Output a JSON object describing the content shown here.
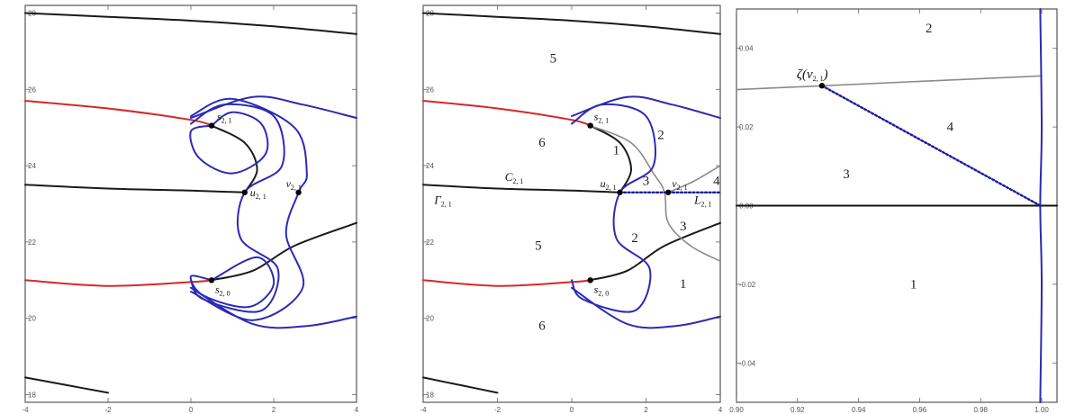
{
  "chart_data": [
    {
      "type": "line",
      "title": "",
      "xlim": [
        -4,
        4
      ],
      "ylim": [
        17.8,
        28.2
      ],
      "xticks": [
        "-4",
        "-2",
        "0",
        "2",
        "4"
      ],
      "yticks": [
        "18",
        "20",
        "22",
        "24",
        "26",
        "28"
      ],
      "grid": false,
      "colors": {
        "black": "#1a1a1a",
        "red": "#d8262a",
        "blue": "#2b2bb5"
      },
      "curves": [
        {
          "color": "black",
          "points": [
            [
              -4,
              28.0
            ],
            [
              -2,
              27.9
            ],
            [
              0,
              27.8
            ],
            [
              2,
              27.65
            ],
            [
              4,
              27.45
            ]
          ]
        },
        {
          "color": "black",
          "points": [
            [
              -4,
              18.45
            ],
            [
              -3,
              18.25
            ],
            [
              -2,
              18.05
            ]
          ]
        },
        {
          "color": "black",
          "points": [
            [
              -4,
              23.5
            ],
            [
              -2,
              23.4
            ],
            [
              0,
              23.35
            ],
            [
              1.3,
              23.3
            ]
          ]
        },
        {
          "color": "black",
          "points": [
            [
              0.5,
              25.05
            ],
            [
              1.3,
              24.6
            ],
            [
              1.6,
              23.9
            ],
            [
              1.3,
              23.3
            ]
          ]
        },
        {
          "color": "black",
          "points": [
            [
              0.5,
              21.0
            ],
            [
              1.5,
              21.25
            ],
            [
              2.5,
              21.9
            ],
            [
              4,
              22.5
            ]
          ]
        },
        {
          "color": "red",
          "points": [
            [
              -4,
              25.7
            ],
            [
              -2,
              25.5
            ],
            [
              0,
              25.2
            ],
            [
              0.5,
              25.05
            ]
          ]
        },
        {
          "color": "red",
          "points": [
            [
              -4,
              21.0
            ],
            [
              -2,
              20.85
            ],
            [
              0,
              20.95
            ],
            [
              0.5,
              21.0
            ]
          ]
        },
        {
          "color": "blue",
          "points": [
            [
              0.5,
              25.05
            ],
            [
              1.0,
              25.4
            ],
            [
              1.7,
              25.1
            ],
            [
              1.8,
              24.3
            ],
            [
              1.0,
              23.8
            ],
            [
              0.2,
              24.2
            ],
            [
              0.0,
              24.9
            ],
            [
              0.5,
              25.05
            ]
          ]
        },
        {
          "color": "blue",
          "points": [
            [
              0.0,
              25.1
            ],
            [
              0.8,
              25.6
            ],
            [
              2.0,
              25.3
            ],
            [
              2.2,
              24.0
            ],
            [
              1.3,
              23.3
            ],
            [
              1.2,
              22.1
            ],
            [
              2.1,
              21.3
            ],
            [
              1.7,
              20.2
            ],
            [
              0.3,
              20.5
            ],
            [
              0.0,
              21.0
            ]
          ]
        },
        {
          "color": "blue",
          "points": [
            [
              0.5,
              21.0
            ],
            [
              1.6,
              21.6
            ],
            [
              2.0,
              20.9
            ],
            [
              1.4,
              20.3
            ],
            [
              0.3,
              20.6
            ],
            [
              0.0,
              21.1
            ],
            [
              0.5,
              21.0
            ]
          ]
        },
        {
          "color": "blue",
          "points": [
            [
              0.0,
              25.3
            ],
            [
              1.0,
              25.75
            ],
            [
              2.5,
              25.0
            ],
            [
              2.8,
              23.8
            ],
            [
              2.6,
              23.3
            ],
            [
              2.3,
              22.2
            ],
            [
              2.7,
              20.8
            ],
            [
              1.5,
              19.95
            ],
            [
              0.0,
              20.7
            ]
          ]
        },
        {
          "color": "blue",
          "points": [
            [
              0.0,
              25.25
            ],
            [
              1.5,
              25.8
            ],
            [
              2.7,
              25.6
            ],
            [
              4,
              25.25
            ]
          ]
        },
        {
          "color": "blue",
          "points": [
            [
              0.0,
              20.8
            ],
            [
              1.5,
              19.85
            ],
            [
              2.8,
              19.8
            ],
            [
              4,
              20.05
            ]
          ]
        }
      ],
      "points": [
        {
          "x": 0.5,
          "y": 25.05,
          "label": "s",
          "sub": "2, 1"
        },
        {
          "x": 1.3,
          "y": 23.3,
          "label": "u",
          "sub": "2, 1"
        },
        {
          "x": 2.6,
          "y": 23.3,
          "label": "v",
          "sub": "2, 1"
        },
        {
          "x": 0.5,
          "y": 21.0,
          "label": "s",
          "sub": "2, 0"
        }
      ]
    },
    {
      "type": "line",
      "title": "",
      "xlim": [
        -4,
        4
      ],
      "ylim": [
        17.8,
        28.2
      ],
      "xticks": [
        "-4",
        "-2",
        "0",
        "2",
        "4"
      ],
      "yticks": [
        "18",
        "20",
        "22",
        "24",
        "26",
        "28"
      ],
      "grid": false,
      "colors": {
        "black": "#1a1a1a",
        "red": "#d8262a",
        "blue": "#2b2bb5",
        "gray": "#8a8a8a",
        "dotted": "#1a1aa0"
      },
      "curves": [
        {
          "color": "black",
          "points": [
            [
              -4,
              28.0
            ],
            [
              -2,
              27.9
            ],
            [
              0,
              27.8
            ],
            [
              2,
              27.65
            ],
            [
              4,
              27.45
            ]
          ]
        },
        {
          "color": "black",
          "points": [
            [
              -4,
              18.45
            ],
            [
              -3,
              18.25
            ],
            [
              -2,
              18.05
            ]
          ]
        },
        {
          "color": "black",
          "points": [
            [
              -4,
              23.5
            ],
            [
              -2,
              23.4
            ],
            [
              0,
              23.35
            ],
            [
              1.3,
              23.3
            ]
          ]
        },
        {
          "color": "black",
          "points": [
            [
              0.5,
              25.05
            ],
            [
              1.3,
              24.6
            ],
            [
              1.6,
              23.9
            ],
            [
              1.3,
              23.3
            ]
          ]
        },
        {
          "color": "black",
          "points": [
            [
              0.5,
              21.0
            ],
            [
              1.5,
              21.25
            ],
            [
              2.5,
              21.9
            ],
            [
              4,
              22.5
            ]
          ]
        },
        {
          "color": "red",
          "points": [
            [
              -4,
              25.7
            ],
            [
              -2,
              25.5
            ],
            [
              0,
              25.2
            ],
            [
              0.5,
              25.05
            ]
          ]
        },
        {
          "color": "red",
          "points": [
            [
              -4,
              21.0
            ],
            [
              -2,
              20.85
            ],
            [
              0,
              20.95
            ],
            [
              0.5,
              21.0
            ]
          ]
        },
        {
          "color": "gray",
          "points": [
            [
              0.5,
              25.05
            ],
            [
              1.6,
              24.6
            ],
            [
              2.2,
              23.8
            ],
            [
              2.5,
              23.3
            ],
            [
              2.6,
              22.5
            ],
            [
              3.2,
              21.9
            ],
            [
              4,
              21.5
            ]
          ]
        },
        {
          "color": "gray",
          "points": [
            [
              2.6,
              23.3
            ],
            [
              3.3,
              23.6
            ],
            [
              4,
              24.0
            ]
          ]
        },
        {
          "color": "blue",
          "points": [
            [
              0.0,
              25.1
            ],
            [
              0.8,
              25.6
            ],
            [
              2.0,
              25.3
            ],
            [
              2.2,
              24.0
            ],
            [
              1.3,
              23.3
            ],
            [
              1.2,
              22.1
            ],
            [
              2.1,
              21.3
            ],
            [
              1.7,
              20.2
            ],
            [
              0.3,
              20.5
            ],
            [
              0.0,
              21.0
            ]
          ]
        },
        {
          "color": "blue",
          "points": [
            [
              0.0,
              25.3
            ],
            [
              1.5,
              25.8
            ],
            [
              2.7,
              25.6
            ],
            [
              4,
              25.25
            ]
          ]
        },
        {
          "color": "blue",
          "points": [
            [
              0.0,
              20.8
            ],
            [
              1.5,
              19.85
            ],
            [
              2.8,
              19.8
            ],
            [
              4,
              20.05
            ]
          ]
        },
        {
          "color": "dotted",
          "points": [
            [
              1.3,
              23.3
            ],
            [
              4,
              23.3
            ]
          ]
        }
      ],
      "points": [
        {
          "x": 0.5,
          "y": 25.05,
          "label": "s",
          "sub": "2, 1"
        },
        {
          "x": 1.3,
          "y": 23.3,
          "label": "u",
          "sub": "2, 1"
        },
        {
          "x": 2.6,
          "y": 23.3,
          "label": "v",
          "sub": "2, 1"
        },
        {
          "x": 0.5,
          "y": 21.0,
          "label": "s",
          "sub": "2, 0"
        }
      ],
      "curve_labels": [
        {
          "text": "C",
          "sub": "2, 1",
          "x": -1.8,
          "y": 23.6
        },
        {
          "text": "Γ",
          "sub": "2, 1",
          "x": -3.7,
          "y": 23.0
        },
        {
          "text": "L",
          "sub": "2, 1",
          "x": 3.3,
          "y": 23.0
        }
      ],
      "regions": [
        {
          "text": "5",
          "x": -0.5,
          "y": 26.7
        },
        {
          "text": "6",
          "x": -0.8,
          "y": 24.5
        },
        {
          "text": "5",
          "x": -0.9,
          "y": 21.8
        },
        {
          "text": "6",
          "x": -0.8,
          "y": 19.7
        },
        {
          "text": "1",
          "x": 1.2,
          "y": 24.3
        },
        {
          "text": "2",
          "x": 2.4,
          "y": 24.7
        },
        {
          "text": "3",
          "x": 2.0,
          "y": 23.5
        },
        {
          "text": "2",
          "x": 1.7,
          "y": 22.0
        },
        {
          "text": "3",
          "x": 3.0,
          "y": 22.3
        },
        {
          "text": "1",
          "x": 3.0,
          "y": 20.8
        },
        {
          "text": "4",
          "x": 3.9,
          "y": 23.5
        }
      ]
    },
    {
      "type": "line",
      "title": "",
      "xlim": [
        0.9,
        1.005
      ],
      "ylim": [
        -0.05,
        0.05
      ],
      "xticks": [
        "0.90",
        "0.92",
        "0.94",
        "0.96",
        "0.98",
        "1.00"
      ],
      "yticks": [
        "-0.04",
        "-0.02",
        "0.00",
        "0.02",
        "0.04"
      ],
      "grid": false,
      "colors": {
        "black": "#111111",
        "gray": "#8a8a8a",
        "blue": "#2b2bb5",
        "dotted": "#1a1aa0"
      },
      "curves": [
        {
          "color": "gray",
          "points": [
            [
              0.9,
              0.0295
            ],
            [
              1.0,
              0.033
            ]
          ]
        },
        {
          "color": "black",
          "points": [
            [
              0.9,
              0.0
            ],
            [
              1.005,
              0.0
            ]
          ]
        },
        {
          "color": "blue",
          "points": [
            [
              0.9995,
              0.05
            ],
            [
              1.0,
              0.02
            ],
            [
              0.9995,
              0.0
            ],
            [
              1.0,
              -0.02
            ],
            [
              0.9995,
              -0.05
            ]
          ]
        },
        {
          "color": "dotted",
          "points": [
            [
              0.928,
              0.0305
            ],
            [
              0.9995,
              0.0
            ]
          ]
        }
      ],
      "points": [
        {
          "x": 0.928,
          "y": 0.0305,
          "label": "ζ(v",
          "sub": "2, 1",
          "suffix": ")"
        }
      ],
      "regions": [
        {
          "text": "2",
          "x": 0.963,
          "y": 0.044
        },
        {
          "text": "4",
          "x": 0.97,
          "y": 0.019
        },
        {
          "text": "3",
          "x": 0.936,
          "y": 0.007
        },
        {
          "text": "1",
          "x": 0.958,
          "y": -0.021
        }
      ]
    }
  ]
}
